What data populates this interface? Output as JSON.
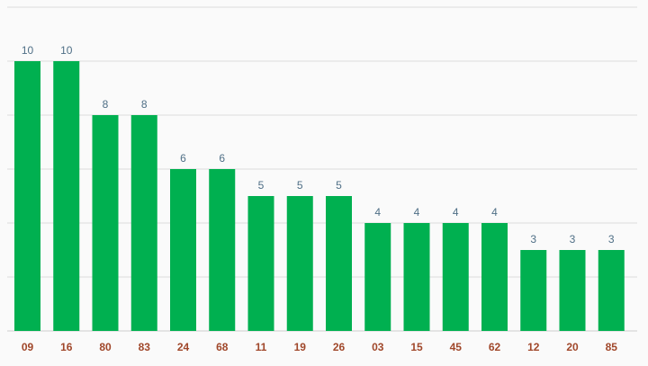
{
  "chart_data": {
    "type": "bar",
    "categories": [
      "09",
      "16",
      "80",
      "83",
      "24",
      "68",
      "11",
      "19",
      "26",
      "03",
      "15",
      "45",
      "62",
      "12",
      "20",
      "85"
    ],
    "values": [
      10,
      10,
      8,
      8,
      6,
      6,
      5,
      5,
      5,
      4,
      4,
      4,
      4,
      3,
      3,
      3
    ],
    "title": "",
    "xlabel": "",
    "ylabel": "",
    "ylim": [
      0,
      12
    ],
    "grid": true,
    "bar_color": "#00b050",
    "value_label_color": "#4f6f86",
    "tick_label_color": "#a0472a"
  }
}
